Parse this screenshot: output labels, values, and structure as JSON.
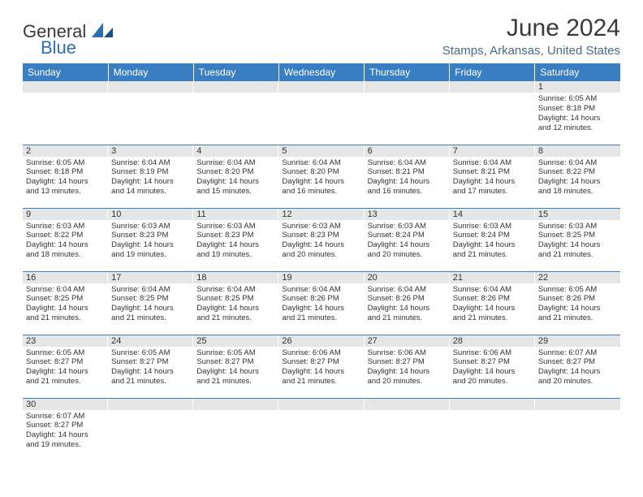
{
  "brand": {
    "general": "General",
    "blue": "Blue"
  },
  "title": "June 2024",
  "location": "Stamps, Arkansas, United States",
  "colors": {
    "header_bg": "#3a7ec2",
    "header_text": "#ffffff",
    "daynum_bg": "#e6e6e6",
    "rule": "#3a7ec2",
    "location_text": "#4a6a8a",
    "logo_blue": "#2d6fb3"
  },
  "weekdays": [
    "Sunday",
    "Monday",
    "Tuesday",
    "Wednesday",
    "Thursday",
    "Friday",
    "Saturday"
  ],
  "weeks": [
    [
      null,
      null,
      null,
      null,
      null,
      null,
      {
        "n": "1",
        "rise": "Sunrise: 6:05 AM",
        "set": "Sunset: 8:18 PM",
        "d1": "Daylight: 14 hours",
        "d2": "and 12 minutes."
      }
    ],
    [
      {
        "n": "2",
        "rise": "Sunrise: 6:05 AM",
        "set": "Sunset: 8:18 PM",
        "d1": "Daylight: 14 hours",
        "d2": "and 13 minutes."
      },
      {
        "n": "3",
        "rise": "Sunrise: 6:04 AM",
        "set": "Sunset: 8:19 PM",
        "d1": "Daylight: 14 hours",
        "d2": "and 14 minutes."
      },
      {
        "n": "4",
        "rise": "Sunrise: 6:04 AM",
        "set": "Sunset: 8:20 PM",
        "d1": "Daylight: 14 hours",
        "d2": "and 15 minutes."
      },
      {
        "n": "5",
        "rise": "Sunrise: 6:04 AM",
        "set": "Sunset: 8:20 PM",
        "d1": "Daylight: 14 hours",
        "d2": "and 16 minutes."
      },
      {
        "n": "6",
        "rise": "Sunrise: 6:04 AM",
        "set": "Sunset: 8:21 PM",
        "d1": "Daylight: 14 hours",
        "d2": "and 16 minutes."
      },
      {
        "n": "7",
        "rise": "Sunrise: 6:04 AM",
        "set": "Sunset: 8:21 PM",
        "d1": "Daylight: 14 hours",
        "d2": "and 17 minutes."
      },
      {
        "n": "8",
        "rise": "Sunrise: 6:04 AM",
        "set": "Sunset: 8:22 PM",
        "d1": "Daylight: 14 hours",
        "d2": "and 18 minutes."
      }
    ],
    [
      {
        "n": "9",
        "rise": "Sunrise: 6:03 AM",
        "set": "Sunset: 8:22 PM",
        "d1": "Daylight: 14 hours",
        "d2": "and 18 minutes."
      },
      {
        "n": "10",
        "rise": "Sunrise: 6:03 AM",
        "set": "Sunset: 8:23 PM",
        "d1": "Daylight: 14 hours",
        "d2": "and 19 minutes."
      },
      {
        "n": "11",
        "rise": "Sunrise: 6:03 AM",
        "set": "Sunset: 8:23 PM",
        "d1": "Daylight: 14 hours",
        "d2": "and 19 minutes."
      },
      {
        "n": "12",
        "rise": "Sunrise: 6:03 AM",
        "set": "Sunset: 8:23 PM",
        "d1": "Daylight: 14 hours",
        "d2": "and 20 minutes."
      },
      {
        "n": "13",
        "rise": "Sunrise: 6:03 AM",
        "set": "Sunset: 8:24 PM",
        "d1": "Daylight: 14 hours",
        "d2": "and 20 minutes."
      },
      {
        "n": "14",
        "rise": "Sunrise: 6:03 AM",
        "set": "Sunset: 8:24 PM",
        "d1": "Daylight: 14 hours",
        "d2": "and 21 minutes."
      },
      {
        "n": "15",
        "rise": "Sunrise: 6:03 AM",
        "set": "Sunset: 8:25 PM",
        "d1": "Daylight: 14 hours",
        "d2": "and 21 minutes."
      }
    ],
    [
      {
        "n": "16",
        "rise": "Sunrise: 6:04 AM",
        "set": "Sunset: 8:25 PM",
        "d1": "Daylight: 14 hours",
        "d2": "and 21 minutes."
      },
      {
        "n": "17",
        "rise": "Sunrise: 6:04 AM",
        "set": "Sunset: 8:25 PM",
        "d1": "Daylight: 14 hours",
        "d2": "and 21 minutes."
      },
      {
        "n": "18",
        "rise": "Sunrise: 6:04 AM",
        "set": "Sunset: 8:25 PM",
        "d1": "Daylight: 14 hours",
        "d2": "and 21 minutes."
      },
      {
        "n": "19",
        "rise": "Sunrise: 6:04 AM",
        "set": "Sunset: 8:26 PM",
        "d1": "Daylight: 14 hours",
        "d2": "and 21 minutes."
      },
      {
        "n": "20",
        "rise": "Sunrise: 6:04 AM",
        "set": "Sunset: 8:26 PM",
        "d1": "Daylight: 14 hours",
        "d2": "and 21 minutes."
      },
      {
        "n": "21",
        "rise": "Sunrise: 6:04 AM",
        "set": "Sunset: 8:26 PM",
        "d1": "Daylight: 14 hours",
        "d2": "and 21 minutes."
      },
      {
        "n": "22",
        "rise": "Sunrise: 6:05 AM",
        "set": "Sunset: 8:26 PM",
        "d1": "Daylight: 14 hours",
        "d2": "and 21 minutes."
      }
    ],
    [
      {
        "n": "23",
        "rise": "Sunrise: 6:05 AM",
        "set": "Sunset: 8:27 PM",
        "d1": "Daylight: 14 hours",
        "d2": "and 21 minutes."
      },
      {
        "n": "24",
        "rise": "Sunrise: 6:05 AM",
        "set": "Sunset: 8:27 PM",
        "d1": "Daylight: 14 hours",
        "d2": "and 21 minutes."
      },
      {
        "n": "25",
        "rise": "Sunrise: 6:05 AM",
        "set": "Sunset: 8:27 PM",
        "d1": "Daylight: 14 hours",
        "d2": "and 21 minutes."
      },
      {
        "n": "26",
        "rise": "Sunrise: 6:06 AM",
        "set": "Sunset: 8:27 PM",
        "d1": "Daylight: 14 hours",
        "d2": "and 21 minutes."
      },
      {
        "n": "27",
        "rise": "Sunrise: 6:06 AM",
        "set": "Sunset: 8:27 PM",
        "d1": "Daylight: 14 hours",
        "d2": "and 20 minutes."
      },
      {
        "n": "28",
        "rise": "Sunrise: 6:06 AM",
        "set": "Sunset: 8:27 PM",
        "d1": "Daylight: 14 hours",
        "d2": "and 20 minutes."
      },
      {
        "n": "29",
        "rise": "Sunrise: 6:07 AM",
        "set": "Sunset: 8:27 PM",
        "d1": "Daylight: 14 hours",
        "d2": "and 20 minutes."
      }
    ],
    [
      {
        "n": "30",
        "rise": "Sunrise: 6:07 AM",
        "set": "Sunset: 8:27 PM",
        "d1": "Daylight: 14 hours",
        "d2": "and 19 minutes."
      },
      null,
      null,
      null,
      null,
      null,
      null
    ]
  ]
}
